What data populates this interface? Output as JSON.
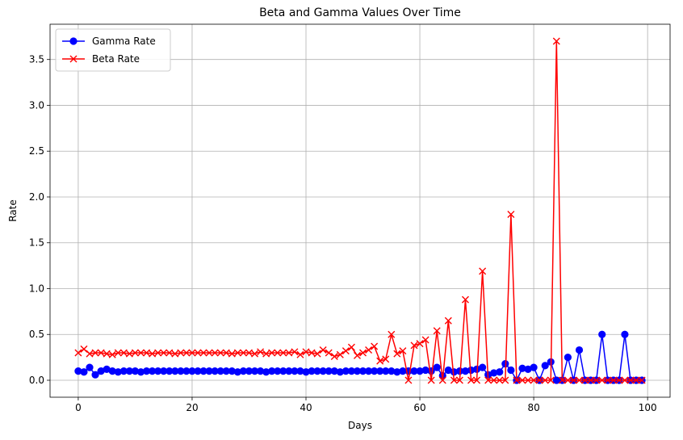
{
  "chart_data": {
    "type": "line",
    "title": "Beta and Gamma Values Over Time",
    "xlabel": "Days",
    "ylabel": "Rate",
    "xlim": [
      -4.95,
      103.95
    ],
    "ylim": [
      -0.185,
      3.885
    ],
    "xticks": [
      0,
      20,
      40,
      60,
      80,
      100
    ],
    "xtick_labels": [
      "0",
      "20",
      "40",
      "60",
      "80",
      "100"
    ],
    "yticks": [
      0,
      0.5,
      1,
      1.5,
      2,
      2.5,
      3,
      3.5
    ],
    "ytick_labels": [
      "0.0",
      "0.5",
      "1.0",
      "1.5",
      "2.0",
      "2.5",
      "3.0",
      "3.5"
    ],
    "grid": true,
    "legend_position": "top-left",
    "x": [
      0,
      1,
      2,
      3,
      4,
      5,
      6,
      7,
      8,
      9,
      10,
      11,
      12,
      13,
      14,
      15,
      16,
      17,
      18,
      19,
      20,
      21,
      22,
      23,
      24,
      25,
      26,
      27,
      28,
      29,
      30,
      31,
      32,
      33,
      34,
      35,
      36,
      37,
      38,
      39,
      40,
      41,
      42,
      43,
      44,
      45,
      46,
      47,
      48,
      49,
      50,
      51,
      52,
      53,
      54,
      55,
      56,
      57,
      58,
      59,
      60,
      61,
      62,
      63,
      64,
      65,
      66,
      67,
      68,
      69,
      70,
      71,
      72,
      73,
      74,
      75,
      76,
      77,
      78,
      79,
      80,
      81,
      82,
      83,
      84,
      85,
      86,
      87,
      88,
      89,
      90,
      91,
      92,
      93,
      94,
      95,
      96,
      97,
      98,
      99
    ],
    "series": [
      {
        "name": "Gamma Rate",
        "color": "#0000ff",
        "marker": "circle",
        "values": [
          0.1,
          0.09,
          0.14,
          0.06,
          0.1,
          0.12,
          0.1,
          0.09,
          0.1,
          0.1,
          0.1,
          0.09,
          0.1,
          0.1,
          0.1,
          0.1,
          0.1,
          0.1,
          0.1,
          0.1,
          0.1,
          0.1,
          0.1,
          0.1,
          0.1,
          0.1,
          0.1,
          0.1,
          0.09,
          0.1,
          0.1,
          0.1,
          0.1,
          0.09,
          0.1,
          0.1,
          0.1,
          0.1,
          0.1,
          0.1,
          0.09,
          0.1,
          0.1,
          0.1,
          0.1,
          0.1,
          0.09,
          0.1,
          0.1,
          0.1,
          0.1,
          0.1,
          0.1,
          0.1,
          0.1,
          0.1,
          0.09,
          0.1,
          0.1,
          0.1,
          0.1,
          0.11,
          0.1,
          0.14,
          0.05,
          0.11,
          0.09,
          0.1,
          0.1,
          0.11,
          0.12,
          0.14,
          0.06,
          0.08,
          0.09,
          0.18,
          0.11,
          0.0,
          0.13,
          0.12,
          0.14,
          0.0,
          0.16,
          0.2,
          0.0,
          0.0,
          0.25,
          0.0,
          0.33,
          0.0,
          0.0,
          0.0,
          0.5,
          0.0,
          0.0,
          0.0,
          0.5,
          0.0,
          0.0,
          0.0
        ]
      },
      {
        "name": "Beta Rate",
        "color": "#ff0000",
        "marker": "x",
        "values": [
          0.3,
          0.34,
          0.29,
          0.3,
          0.3,
          0.29,
          0.28,
          0.3,
          0.3,
          0.29,
          0.3,
          0.3,
          0.3,
          0.29,
          0.3,
          0.3,
          0.3,
          0.29,
          0.3,
          0.3,
          0.3,
          0.3,
          0.3,
          0.3,
          0.3,
          0.3,
          0.3,
          0.29,
          0.3,
          0.3,
          0.3,
          0.29,
          0.31,
          0.29,
          0.3,
          0.3,
          0.3,
          0.3,
          0.31,
          0.28,
          0.31,
          0.3,
          0.29,
          0.33,
          0.3,
          0.26,
          0.28,
          0.32,
          0.36,
          0.27,
          0.3,
          0.33,
          0.37,
          0.21,
          0.23,
          0.5,
          0.29,
          0.32,
          0.0,
          0.38,
          0.4,
          0.44,
          0.0,
          0.54,
          0.0,
          0.65,
          0.0,
          0.0,
          0.88,
          0.0,
          0.0,
          1.19,
          0.0,
          0.0,
          0.0,
          0.0,
          1.81,
          0.0,
          0.0,
          0.0,
          0.0,
          0.0,
          0.0,
          0.0,
          3.7,
          0.0,
          0.0,
          0.0,
          0.0,
          0.0,
          0.0,
          0.0,
          0.0,
          0.0,
          0.0,
          0.0,
          0.0,
          0.0,
          0.0,
          0.0
        ]
      }
    ]
  }
}
